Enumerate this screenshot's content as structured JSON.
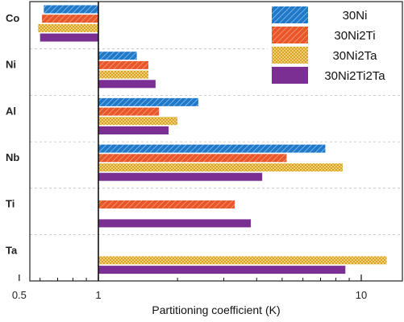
{
  "chart_data": {
    "type": "bar",
    "orientation": "horizontal",
    "x_scale": "log",
    "xlim": [
      0.5,
      15
    ],
    "baseline": 1,
    "xlabel": "Partitioning coefficient (K)",
    "ylabel": "",
    "title": "",
    "x_ticks": [
      {
        "value": 0.5,
        "label": "0.5"
      },
      {
        "value": 1,
        "label": "1"
      },
      {
        "value": 10,
        "label": "10"
      }
    ],
    "categories": [
      "Co",
      "Ni",
      "Al",
      "Nb",
      "Ti",
      "Ta"
    ],
    "grid": "dashed horizontal separators between categories",
    "legend_position": "top-right",
    "series": [
      {
        "name": "30Ni",
        "color": "#1f78c8",
        "pattern": "diagonal-hatch",
        "values": [
          0.62,
          1.4,
          2.4,
          7.3,
          null,
          null
        ]
      },
      {
        "name": "30Ni2Ti",
        "color": "#e8562a",
        "pattern": "diagonal-hatch",
        "values": [
          0.61,
          1.55,
          1.7,
          5.2,
          3.3,
          null
        ]
      },
      {
        "name": "30Ni2Ta",
        "color": "#d8a52a",
        "pattern": "checker",
        "values": [
          0.59,
          1.55,
          2.0,
          8.5,
          null,
          12.5
        ]
      },
      {
        "name": "30Ni2Ti2Ta",
        "color": "#7b2f93",
        "pattern": "solid",
        "values": [
          0.6,
          1.65,
          1.85,
          4.2,
          3.8,
          8.7
        ]
      }
    ]
  }
}
